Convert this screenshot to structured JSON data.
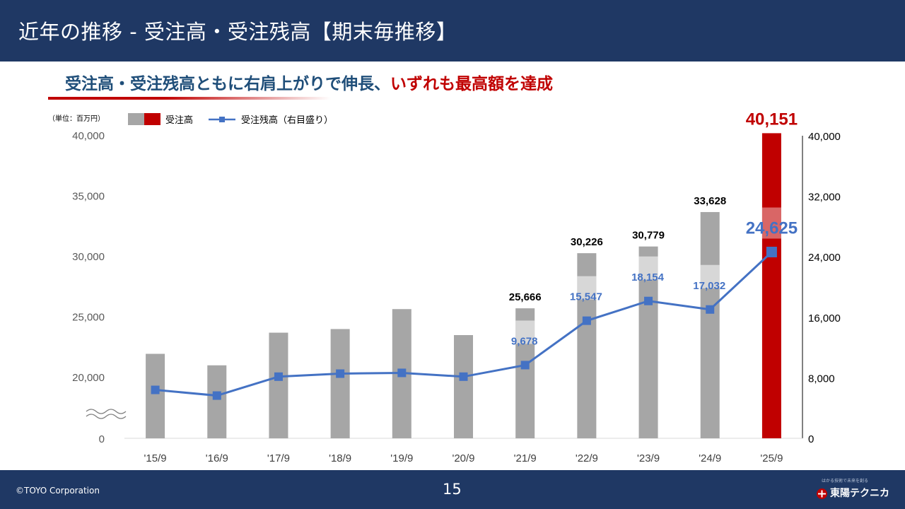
{
  "header": {
    "title": "近年の推移 - 受注高・受注残高【期末毎推移】"
  },
  "subtitle": {
    "part1": "受注高・受注残高ともに右肩上がりで伸長、",
    "part2": "いずれも最高額を達成"
  },
  "colors": {
    "navy": "#1f3864",
    "red": "#c00000",
    "bar_gray": "#a6a6a6",
    "line_blue": "#4472c4",
    "label_blue": "#4472c4"
  },
  "chart_data": {
    "type": "bar+line",
    "unit_label": "（単位：百万円）",
    "categories": [
      "'15/9",
      "'16/9",
      "'17/9",
      "'18/9",
      "'19/9",
      "'20/9",
      "'21/9",
      "'22/9",
      "'23/9",
      "'24/9",
      "'25/9"
    ],
    "series": [
      {
        "name": "受注高",
        "type": "bar",
        "axis": "left",
        "values": [
          21900,
          20950,
          23650,
          23950,
          25600,
          23450,
          25666,
          30226,
          30779,
          33628,
          40151
        ],
        "data_labels": [
          null,
          null,
          null,
          null,
          null,
          null,
          "25,666",
          "30,226",
          "30,779",
          "33,628",
          "40,151"
        ],
        "highlight_index": 10
      },
      {
        "name": "受注残高（右目盛り）",
        "type": "line",
        "axis": "right",
        "values": [
          6400,
          5650,
          8150,
          8550,
          8650,
          8150,
          9678,
          15547,
          18154,
          17032,
          24625
        ],
        "data_labels": [
          null,
          null,
          null,
          null,
          null,
          null,
          "9,678",
          "15,547",
          "18,154",
          "17,032",
          "24,625"
        ]
      }
    ],
    "y_left": {
      "ticks": [
        "0",
        "20,000",
        "25,000",
        "30,000",
        "35,000",
        "40,000"
      ],
      "broken_axis": true
    },
    "y_right": {
      "ticks": [
        "0",
        "8,000",
        "16,000",
        "24,000",
        "32,000",
        "40,000"
      ],
      "range": [
        0,
        40000
      ]
    }
  },
  "footer": {
    "copyright": "©TOYO Corporation",
    "page_number": "15",
    "logo_tagline": "はかる技術で未来を創る",
    "logo_name": "東陽テクニカ"
  }
}
